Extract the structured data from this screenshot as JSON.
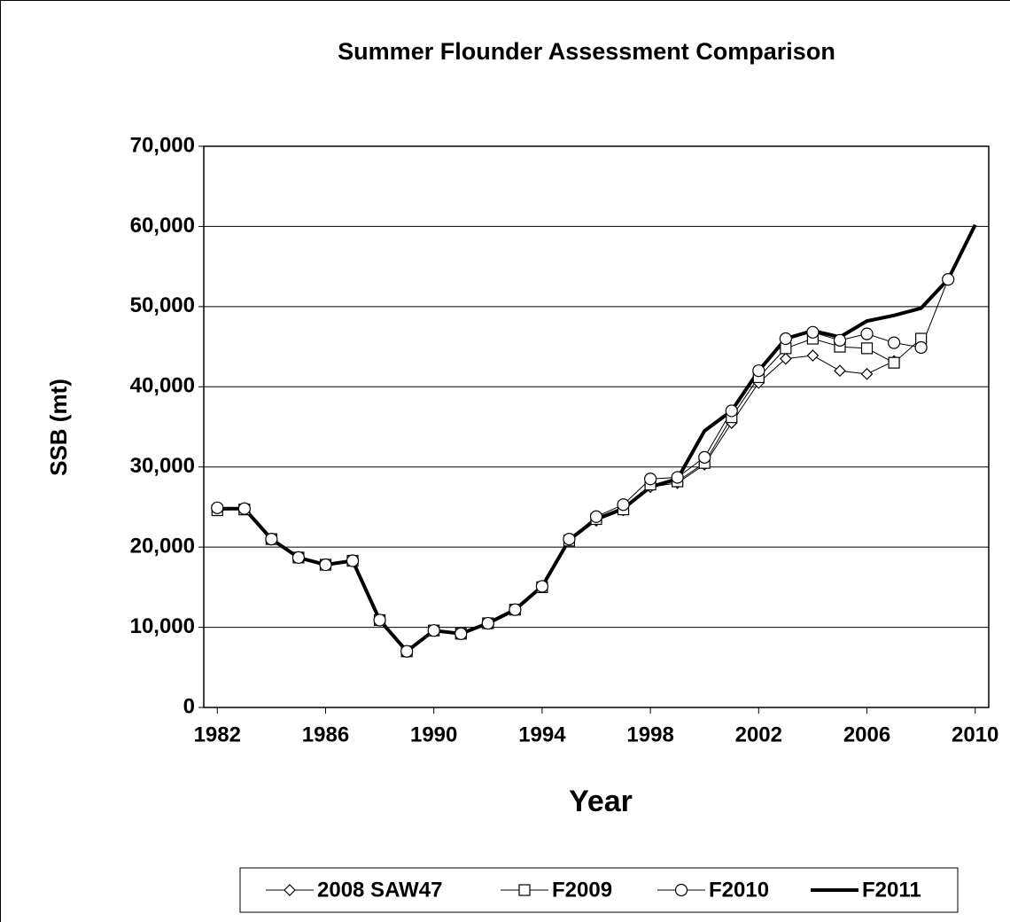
{
  "chart_data": {
    "type": "line",
    "title": "Summer Flounder Assessment Comparison",
    "y_label": "SSB (mt)",
    "x_label": "Year",
    "x": [
      1982,
      1983,
      1984,
      1985,
      1986,
      1987,
      1988,
      1989,
      1990,
      1991,
      1992,
      1993,
      1994,
      1995,
      1996,
      1997,
      1998,
      1999,
      2000,
      2001,
      2002,
      2003,
      2004,
      2005,
      2006,
      2007,
      2008,
      2009,
      2010
    ],
    "xlim": [
      1981.5,
      2010.5
    ],
    "xticks": [
      1982,
      1986,
      1990,
      1994,
      1998,
      2002,
      2006,
      2010
    ],
    "ylim": [
      0,
      70000
    ],
    "yticks": [
      0,
      {
        "value": 10000,
        "label": "10,000"
      },
      {
        "value": 20000,
        "label": "20,000"
      },
      {
        "value": 30000,
        "label": "30,000"
      },
      {
        "value": 40000,
        "label": "40,000"
      },
      {
        "value": 50000,
        "label": "50,000"
      },
      {
        "value": 60000,
        "label": "60,000"
      },
      {
        "value": 70000,
        "label": "70,000"
      }
    ],
    "grid": true,
    "legend": "bottom",
    "series": [
      {
        "name": "2008 SAW47",
        "color": "#000000",
        "marker": "diamond",
        "line_width": 1,
        "values": [
          24800,
          24800,
          21000,
          18700,
          17800,
          18300,
          10900,
          7000,
          9600,
          9200,
          10500,
          12200,
          15100,
          20900,
          23300,
          24600,
          27500,
          28000,
          30300,
          35500,
          40500,
          43500,
          43900,
          42000,
          41600,
          43200,
          null,
          null,
          null
        ]
      },
      {
        "name": "F2009",
        "color": "#000000",
        "marker": "square",
        "line_width": 1,
        "values": [
          24600,
          24700,
          21000,
          18700,
          17800,
          18300,
          10900,
          7000,
          9600,
          9200,
          10500,
          12200,
          15000,
          20800,
          23500,
          24700,
          27800,
          28200,
          30500,
          36200,
          41200,
          44800,
          46000,
          45000,
          44800,
          43000,
          46000,
          null,
          null
        ]
      },
      {
        "name": "F2010",
        "color": "#000000",
        "marker": "circle",
        "line_width": 1,
        "values": [
          24900,
          24800,
          21000,
          18700,
          17800,
          18300,
          10900,
          7000,
          9600,
          9200,
          10500,
          12200,
          15100,
          21000,
          23800,
          25300,
          28500,
          28700,
          31200,
          37000,
          42000,
          46000,
          46800,
          45800,
          46600,
          45500,
          44900,
          53400,
          null
        ]
      },
      {
        "name": "F2011",
        "color": "#000000",
        "marker": "none",
        "line_width": 4,
        "values": [
          24800,
          24800,
          21000,
          18700,
          17800,
          18300,
          10900,
          7000,
          9600,
          9200,
          10500,
          12200,
          15100,
          20900,
          23500,
          24800,
          27500,
          28500,
          34500,
          37000,
          42000,
          46000,
          47000,
          46200,
          48200,
          48900,
          49800,
          53400,
          60200
        ]
      }
    ]
  }
}
